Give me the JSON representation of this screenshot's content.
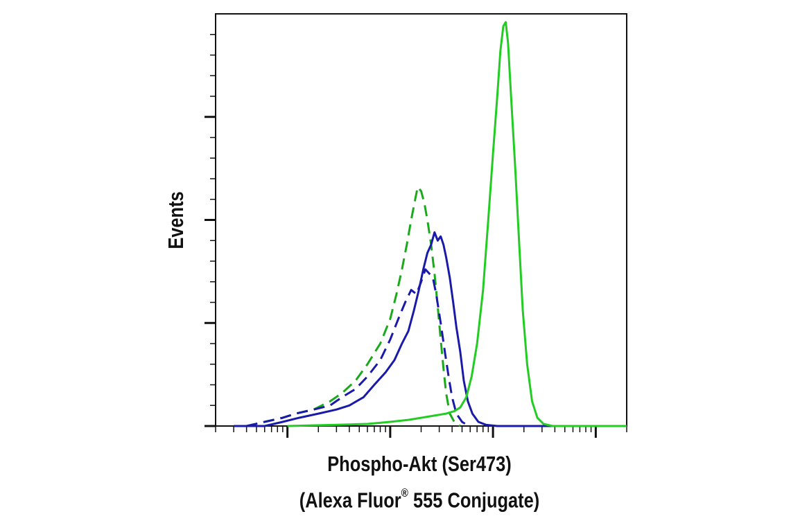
{
  "chart_data": {
    "type": "line",
    "title": "",
    "xlabel_line1": "Phospho-Akt (Ser473)",
    "xlabel_line2_main": "(Alexa Fluor",
    "xlabel_line2_sup": "®",
    "xlabel_line2_end": " 555 Conjugate)",
    "ylabel": "Events",
    "x_scale": "log",
    "xlim": [
      0.2,
      2000
    ],
    "ylim": [
      0,
      100
    ],
    "grid": false,
    "legend": "none",
    "series": [
      {
        "color": "#1aa91a",
        "style": "dashed",
        "points": [
          [
            0.4,
            0
          ],
          [
            0.6,
            1
          ],
          [
            0.9,
            2
          ],
          [
            1.2,
            3
          ],
          [
            1.8,
            4
          ],
          [
            2.6,
            6
          ],
          [
            3.4,
            8
          ],
          [
            4.6,
            11
          ],
          [
            6,
            15
          ],
          [
            8,
            20
          ],
          [
            10,
            26
          ],
          [
            11.5,
            32
          ],
          [
            13,
            38
          ],
          [
            14.5,
            44
          ],
          [
            16,
            50
          ],
          [
            17.5,
            55
          ],
          [
            18.5,
            58
          ],
          [
            20,
            57
          ],
          [
            21.5,
            54
          ],
          [
            23,
            50
          ],
          [
            25,
            44
          ],
          [
            27,
            37
          ],
          [
            29,
            29
          ],
          [
            31,
            21
          ],
          [
            33,
            14
          ],
          [
            35,
            8
          ],
          [
            38,
            3
          ],
          [
            42,
            1
          ],
          [
            48,
            0
          ]
        ]
      },
      {
        "color": "#1a1aa8",
        "style": "dashed",
        "points": [
          [
            0.4,
            0
          ],
          [
            0.6,
            1
          ],
          [
            0.9,
            2
          ],
          [
            1.2,
            3
          ],
          [
            1.8,
            4
          ],
          [
            2.6,
            5
          ],
          [
            3.4,
            7
          ],
          [
            4.6,
            9
          ],
          [
            6,
            12
          ],
          [
            8,
            16
          ],
          [
            10,
            21
          ],
          [
            12,
            26
          ],
          [
            14,
            30
          ],
          [
            16,
            33
          ],
          [
            18,
            32
          ],
          [
            20,
            35
          ],
          [
            22,
            38
          ],
          [
            24,
            37
          ],
          [
            26,
            36
          ],
          [
            28,
            32
          ],
          [
            31,
            25
          ],
          [
            34,
            18
          ],
          [
            37,
            12
          ],
          [
            40,
            7
          ],
          [
            44,
            3
          ],
          [
            50,
            1
          ],
          [
            58,
            0
          ]
        ]
      },
      {
        "color": "#1a1aa8",
        "style": "solid",
        "points": [
          [
            0.3,
            0
          ],
          [
            0.6,
            0
          ],
          [
            0.9,
            1
          ],
          [
            1.3,
            2
          ],
          [
            2,
            3
          ],
          [
            3,
            4
          ],
          [
            4,
            5
          ],
          [
            5.5,
            7
          ],
          [
            7,
            10
          ],
          [
            9,
            13
          ],
          [
            11,
            16
          ],
          [
            13,
            20
          ],
          [
            15,
            23
          ],
          [
            17,
            28
          ],
          [
            19,
            33
          ],
          [
            21,
            38
          ],
          [
            23,
            42
          ],
          [
            25,
            44
          ],
          [
            27,
            47
          ],
          [
            29,
            45
          ],
          [
            31,
            46
          ],
          [
            33,
            44
          ],
          [
            35,
            41
          ],
          [
            38,
            36
          ],
          [
            41,
            30
          ],
          [
            44,
            24
          ],
          [
            48,
            18
          ],
          [
            52,
            11
          ],
          [
            57,
            6
          ],
          [
            63,
            3
          ],
          [
            72,
            1
          ],
          [
            85,
            0.3
          ],
          [
            110,
            0
          ],
          [
            2000,
            0
          ]
        ]
      },
      {
        "color": "#22cc22",
        "style": "solid",
        "points": [
          [
            1,
            0
          ],
          [
            3,
            0.3
          ],
          [
            6,
            0.5
          ],
          [
            10,
            1
          ],
          [
            15,
            1.5
          ],
          [
            20,
            2
          ],
          [
            28,
            2.6
          ],
          [
            35,
            3
          ],
          [
            42,
            3.6
          ],
          [
            48,
            4.5
          ],
          [
            55,
            7
          ],
          [
            62,
            12
          ],
          [
            70,
            20
          ],
          [
            80,
            33
          ],
          [
            90,
            50
          ],
          [
            100,
            66
          ],
          [
            110,
            80
          ],
          [
            118,
            91
          ],
          [
            126,
            97
          ],
          [
            133,
            98
          ],
          [
            140,
            93
          ],
          [
            150,
            80
          ],
          [
            165,
            62
          ],
          [
            180,
            44
          ],
          [
            195,
            28
          ],
          [
            215,
            15
          ],
          [
            240,
            6
          ],
          [
            270,
            2
          ],
          [
            310,
            0.5
          ],
          [
            380,
            0
          ],
          [
            2000,
            0
          ]
        ]
      }
    ]
  }
}
